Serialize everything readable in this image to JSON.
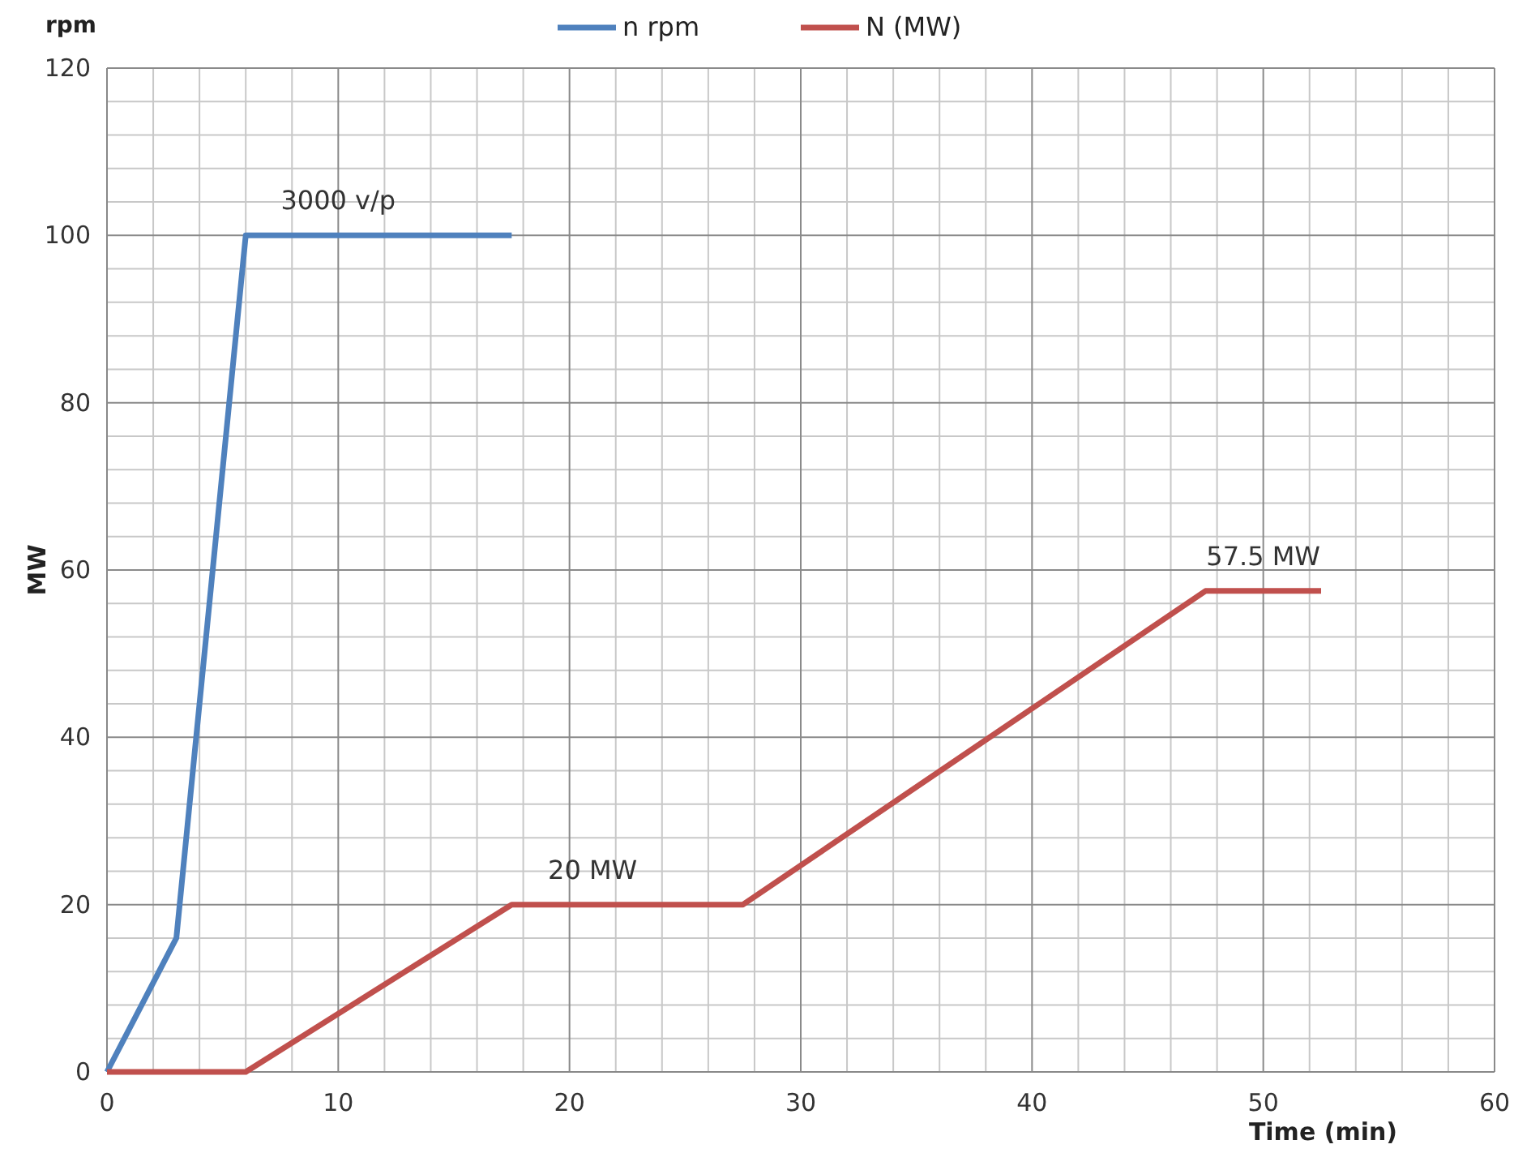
{
  "chart_data": {
    "type": "line",
    "xlabel": "Time (min)",
    "ylabel": "MW",
    "xlim": [
      0,
      60
    ],
    "xticks": [
      0,
      10,
      20,
      30,
      40,
      50,
      {
        "value": 60,
        "label": "60"
      }
    ],
    "ylim": [
      0,
      120
    ],
    "yticks": [
      0,
      20,
      40,
      60,
      80,
      100,
      120
    ],
    "grid": true,
    "legend": "top",
    "marker": "none",
    "line_style": "solid",
    "series": [
      {
        "name": "n rpm",
        "color": "#4f81bd",
        "x": [
          0,
          3,
          6,
          17.5
        ],
        "values": [
          0,
          16,
          100,
          100
        ]
      },
      {
        "name": "N (MW)",
        "color": "#c0504d",
        "x": [
          0,
          6,
          17.5,
          27.5,
          47.5,
          52.5
        ],
        "values": [
          0,
          0,
          20,
          20,
          57.5,
          57.5
        ]
      }
    ],
    "annotations": [
      "rpm",
      {
        "text": "3000 v/p",
        "x": 10,
        "y": 100
      },
      {
        "text": "20 MW",
        "x": 21,
        "y": 20
      },
      {
        "text": "57.5 MW",
        "x": 50,
        "y": 57.5
      }
    ]
  }
}
